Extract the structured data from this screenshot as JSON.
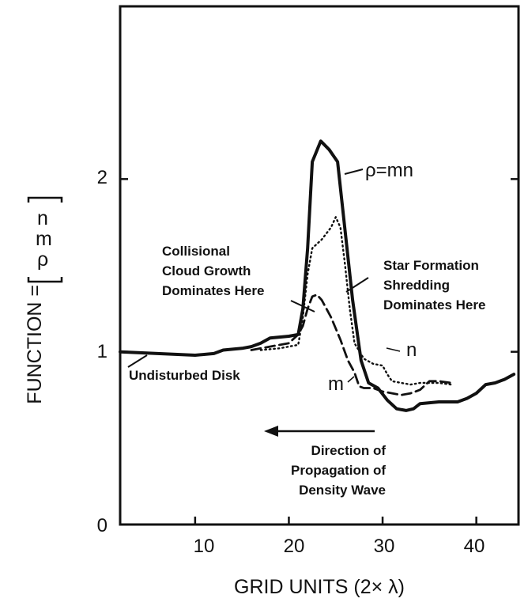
{
  "chart_data": {
    "type": "line",
    "xlabel": "GRID UNITS (2× λ)",
    "ylabel": {
      "prefix": "FUNCTION =",
      "stack": [
        "ρ",
        "m",
        "n"
      ]
    },
    "xlim": [
      2,
      44.5
    ],
    "ylim": [
      0,
      3.0
    ],
    "xticks": [
      10,
      20,
      30,
      40
    ],
    "yticks": [
      0,
      1,
      2
    ],
    "ytick_labels": [
      "0",
      "1",
      "2"
    ],
    "xtick_labels": [
      "10",
      "20",
      "30",
      "40"
    ],
    "series": [
      {
        "name": "ρ=mn",
        "style": "solid",
        "points": [
          [
            2,
            1.0
          ],
          [
            6,
            0.99
          ],
          [
            10,
            0.98
          ],
          [
            12,
            0.99
          ],
          [
            13,
            1.01
          ],
          [
            15,
            1.02
          ],
          [
            16,
            1.03
          ],
          [
            17,
            1.05
          ],
          [
            18,
            1.08
          ],
          [
            20,
            1.09
          ],
          [
            21,
            1.1
          ],
          [
            21.5,
            1.25
          ],
          [
            22,
            1.6
          ],
          [
            22.5,
            2.1
          ],
          [
            23.4,
            2.22
          ],
          [
            24.3,
            2.17
          ],
          [
            25.2,
            2.1
          ],
          [
            26,
            1.7
          ],
          [
            26.8,
            1.3
          ],
          [
            27.7,
            0.95
          ],
          [
            28.5,
            0.82
          ],
          [
            29.5,
            0.79
          ],
          [
            30.5,
            0.72
          ],
          [
            31.5,
            0.67
          ],
          [
            32.5,
            0.66
          ],
          [
            33.3,
            0.67
          ],
          [
            34,
            0.7
          ],
          [
            36,
            0.71
          ],
          [
            38,
            0.71
          ],
          [
            39,
            0.73
          ],
          [
            40,
            0.76
          ],
          [
            41,
            0.81
          ],
          [
            42,
            0.82
          ],
          [
            43,
            0.84
          ],
          [
            44,
            0.87
          ]
        ]
      },
      {
        "name": "m",
        "style": "dashed",
        "points": [
          [
            16,
            1.01
          ],
          [
            18,
            1.03
          ],
          [
            20,
            1.05
          ],
          [
            21,
            1.1
          ],
          [
            21.5,
            1.15
          ],
          [
            22,
            1.25
          ],
          [
            22.5,
            1.32
          ],
          [
            23,
            1.33
          ],
          [
            23.5,
            1.3
          ],
          [
            24.5,
            1.2
          ],
          [
            25.5,
            1.07
          ],
          [
            26.3,
            0.95
          ],
          [
            27,
            0.88
          ],
          [
            27.5,
            0.8
          ],
          [
            28,
            0.79
          ],
          [
            29,
            0.79
          ],
          [
            30,
            0.77
          ],
          [
            31,
            0.76
          ],
          [
            32,
            0.75
          ],
          [
            33,
            0.76
          ],
          [
            34,
            0.78
          ],
          [
            35,
            0.83
          ],
          [
            36,
            0.83
          ],
          [
            37.3,
            0.82
          ]
        ]
      },
      {
        "name": "n",
        "style": "dotted",
        "points": [
          [
            17,
            1.01
          ],
          [
            19,
            1.02
          ],
          [
            21,
            1.04
          ],
          [
            21.5,
            1.2
          ],
          [
            22,
            1.45
          ],
          [
            22.5,
            1.6
          ],
          [
            23.5,
            1.65
          ],
          [
            24.5,
            1.72
          ],
          [
            25,
            1.78
          ],
          [
            25.5,
            1.72
          ],
          [
            26,
            1.5
          ],
          [
            26.5,
            1.25
          ],
          [
            27,
            1.05
          ],
          [
            28,
            0.96
          ],
          [
            29,
            0.93
          ],
          [
            30,
            0.92
          ],
          [
            30.5,
            0.87
          ],
          [
            31,
            0.83
          ],
          [
            32,
            0.82
          ],
          [
            33,
            0.81
          ],
          [
            34,
            0.82
          ],
          [
            35,
            0.82
          ],
          [
            36,
            0.82
          ],
          [
            37.3,
            0.81
          ]
        ]
      }
    ],
    "series_labels": [
      "ρ=mn",
      "m",
      "n"
    ],
    "annotations": {
      "collisional": [
        "Collisional",
        "Cloud Growth",
        "Dominates Here"
      ],
      "star_formation": [
        "Star Formation",
        "Shredding",
        "Dominates Here"
      ],
      "undisturbed": "Undisturbed Disk",
      "direction": [
        "Direction of",
        "Propagation of",
        "Density Wave"
      ]
    },
    "grid": false,
    "legend": "none"
  }
}
